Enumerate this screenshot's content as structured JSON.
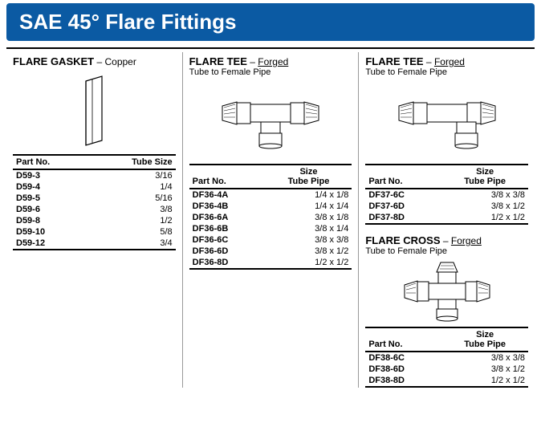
{
  "banner": {
    "title": "SAE 45° Flare Fittings"
  },
  "colors": {
    "banner_bg": "#0b5aa3",
    "banner_fg": "#ffffff",
    "rule": "#000000",
    "sep": "#999999"
  },
  "sections": {
    "gasket": {
      "name": "FLARE GASKET",
      "material": "Copper",
      "headers": [
        "Part No.",
        "Tube Size"
      ],
      "rows": [
        [
          "D59-3",
          "3/16"
        ],
        [
          "D59-4",
          "1/4"
        ],
        [
          "D59-5",
          "5/16"
        ],
        [
          "D59-6",
          "3/8"
        ],
        [
          "D59-8",
          "1/2"
        ],
        [
          "D59-10",
          "5/8"
        ],
        [
          "D59-12",
          "3/4"
        ]
      ]
    },
    "tee1": {
      "name": "FLARE TEE",
      "material": "Forged",
      "subtitle": "Tube to Female Pipe",
      "headers": [
        "Part No.",
        "Size\nTube Pipe"
      ],
      "header_top": "Size",
      "header_bot": "Tube Pipe",
      "rows": [
        [
          "DF36-4A",
          "1/4 x 1/8"
        ],
        [
          "DF36-4B",
          "1/4 x 1/4"
        ],
        [
          "DF36-6A",
          "3/8 x 1/8"
        ],
        [
          "DF36-6B",
          "3/8 x 1/4"
        ],
        [
          "DF36-6C",
          "3/8 x 3/8"
        ],
        [
          "DF36-6D",
          "3/8 x 1/2"
        ],
        [
          "DF36-8D",
          "1/2 x 1/2"
        ]
      ]
    },
    "tee2": {
      "name": "FLARE TEE",
      "material": "Forged",
      "subtitle": "Tube to Female Pipe",
      "header_top": "Size",
      "header_bot": "Tube Pipe",
      "rows": [
        [
          "DF37-6C",
          "3/8 x 3/8"
        ],
        [
          "DF37-6D",
          "3/8 x 1/2"
        ],
        [
          "DF37-8D",
          "1/2 x 1/2"
        ]
      ]
    },
    "cross": {
      "name": "FLARE CROSS",
      "material": "Forged",
      "subtitle": "Tube to Female Pipe",
      "header_top": "Size",
      "header_bot": "Tube Pipe",
      "rows": [
        [
          "DF38-6C",
          "3/8 x 3/8"
        ],
        [
          "DF38-6D",
          "3/8 x 1/2"
        ],
        [
          "DF38-8D",
          "1/2 x 1/2"
        ]
      ]
    }
  },
  "labels": {
    "partno": "Part No."
  }
}
